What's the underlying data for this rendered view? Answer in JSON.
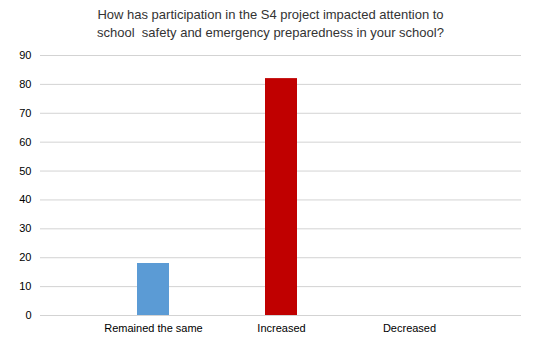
{
  "chart_data": {
    "type": "bar",
    "title": "How has participation in the S4 project impacted attention to\nschool  safety and emergency preparedness in your school?",
    "categories": [
      "Remained the same",
      "Increased",
      "Decreased"
    ],
    "values": [
      18,
      82,
      0
    ],
    "colors": [
      "#5b9bd5",
      "#c00000",
      "#5b9bd5"
    ],
    "ylim": [
      0,
      90
    ],
    "yticks": [
      0,
      10,
      20,
      30,
      40,
      50,
      60,
      70,
      80,
      90
    ],
    "grid": true
  }
}
